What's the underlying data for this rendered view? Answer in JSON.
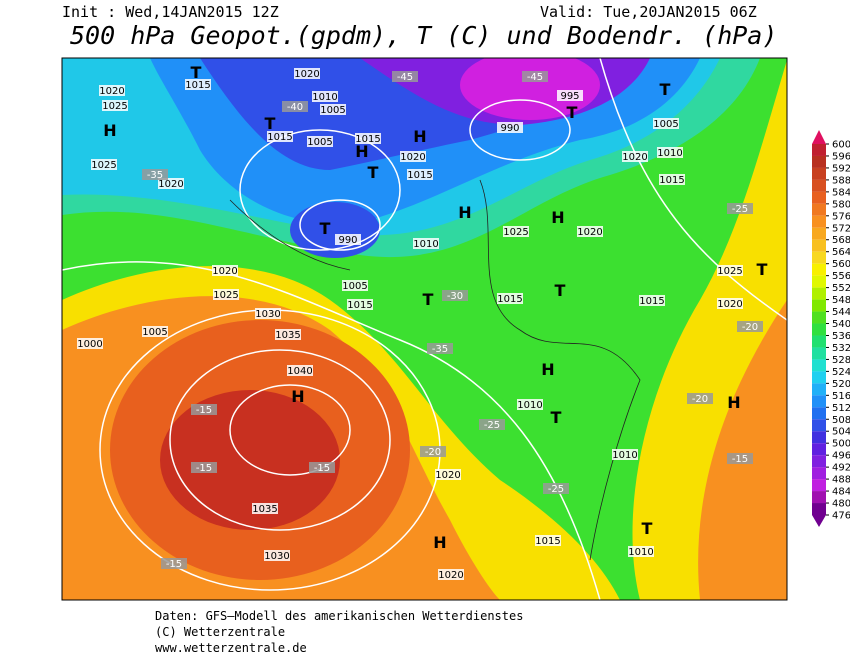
{
  "header": {
    "init": "Init : Wed,14JAN2015 12Z",
    "valid": "Valid: Tue,20JAN2015 06Z",
    "title": "500 hPa Geopot.(gpdm), T (C) und Bodendr. (hPa)"
  },
  "colorbar": {
    "levels": [
      600,
      596,
      592,
      588,
      584,
      580,
      576,
      572,
      568,
      564,
      560,
      556,
      552,
      548,
      544,
      540,
      536,
      532,
      528,
      524,
      520,
      516,
      512,
      508,
      504,
      500,
      496,
      492,
      488,
      484,
      480,
      476
    ],
    "colors": [
      "#e01060",
      "#c02030",
      "#b83020",
      "#c84020",
      "#d85020",
      "#e86020",
      "#f07820",
      "#f89020",
      "#f8a820",
      "#f8c020",
      "#f8d820",
      "#f8f000",
      "#e0f800",
      "#b0f000",
      "#80e800",
      "#50e020",
      "#30e040",
      "#20e070",
      "#20e0a0",
      "#20e0d0",
      "#20d0f0",
      "#20b0f8",
      "#2090f8",
      "#2070f0",
      "#3050e8",
      "#4030e0",
      "#6020e0",
      "#8020e0",
      "#a020e0",
      "#c020e0",
      "#a010b0",
      "#700090"
    ]
  },
  "map": {
    "labels": [
      "T",
      "1015",
      "1020",
      "1010",
      "1005",
      "H",
      "1020",
      "1025",
      "T",
      "1015",
      "1005",
      "H",
      "1015",
      "H",
      "1020",
      "T",
      "1015",
      "990",
      "995",
      "T",
      "T",
      "1005",
      "1010",
      "1015",
      "1020",
      "1025",
      "1020",
      "-35",
      "H",
      "H",
      "T",
      "990",
      "1010",
      "1025",
      "1020",
      "T",
      "1015",
      "1005",
      "1020",
      "1025",
      "1030",
      "1035",
      "1040",
      "H",
      "1035",
      "1030",
      "1000",
      "1005",
      "T",
      "1015",
      "H",
      "1010",
      "T",
      "1010",
      "1015",
      "T",
      "1010",
      "H",
      "1020",
      "1020",
      "T",
      "1025",
      "1020",
      "1015",
      "H",
      "-15",
      "-15",
      "-15",
      "-15",
      "-20",
      "-25",
      "-25",
      "-30",
      "-35",
      "-40",
      "-45",
      "-45",
      "-20",
      "-20",
      "-15",
      "-25"
    ]
  },
  "footer": [
    "Daten: GFS–Modell des amerikanischen Wetterdienstes",
    "(C) Wetterzentrale",
    "www.wetterzentrale.de"
  ]
}
